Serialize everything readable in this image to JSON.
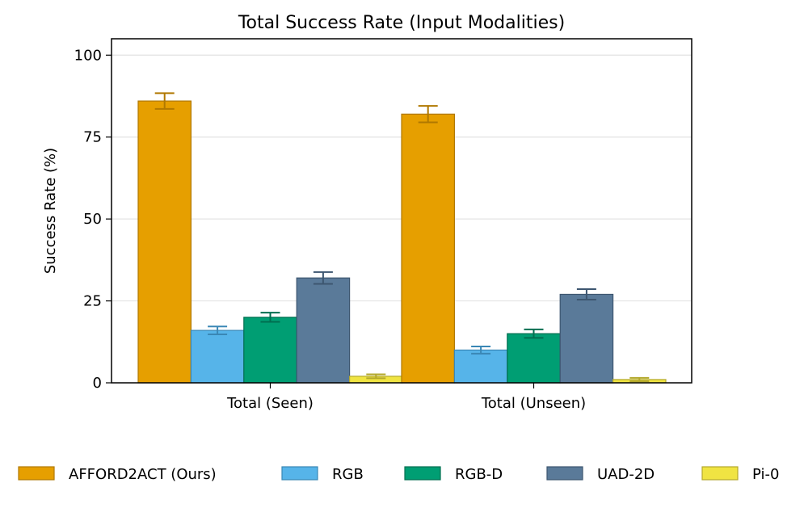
{
  "chart_data": {
    "type": "bar",
    "title": "Total Success Rate (Input Modalities)",
    "xlabel": "",
    "ylabel": "Success Rate (%)",
    "ylim": [
      0,
      105
    ],
    "yticks": [
      0,
      25,
      50,
      75,
      100
    ],
    "grid": true,
    "legend_position": "bottom",
    "categories": [
      "Total (Seen)",
      "Total (Unseen)"
    ],
    "series": [
      {
        "name": "AFFORD2ACT (Ours)",
        "color": "#E69F00",
        "edge": "#B07800",
        "values": [
          86,
          82
        ],
        "errors": [
          2.4,
          2.5
        ]
      },
      {
        "name": "RGB",
        "color": "#56B4E9",
        "edge": "#3A87B5",
        "values": [
          16,
          10
        ],
        "errors": [
          1.2,
          1.1
        ]
      },
      {
        "name": "RGB-D",
        "color": "#009E73",
        "edge": "#006E50",
        "values": [
          20,
          15
        ],
        "errors": [
          1.4,
          1.3
        ]
      },
      {
        "name": "UAD-2D",
        "color": "#5A7A99",
        "edge": "#3D5670",
        "values": [
          32,
          27
        ],
        "errors": [
          1.8,
          1.6
        ]
      },
      {
        "name": "Pi-0",
        "color": "#F0E442",
        "edge": "#B3A82C",
        "values": [
          2,
          1
        ],
        "errors": [
          0.6,
          0.5
        ]
      }
    ]
  }
}
